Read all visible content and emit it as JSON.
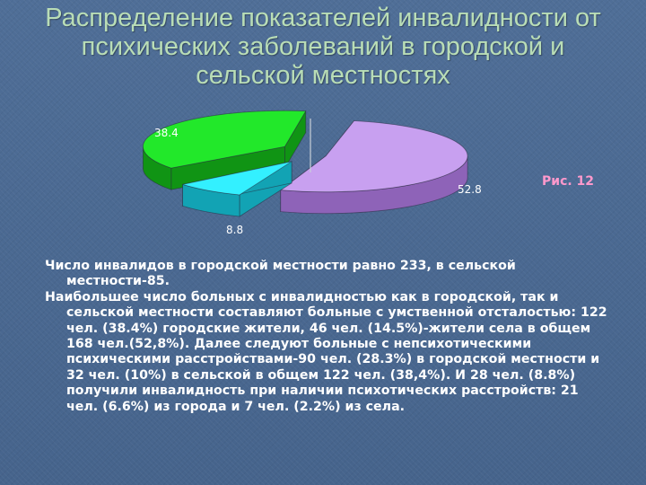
{
  "title_lines": [
    "Распределение показателей инвалидности от",
    "психических заболеваний в городской и",
    "сельской местностях"
  ],
  "figure_label": "Рис. 12",
  "chart_data": {
    "type": "pie",
    "values": [
      52.8,
      8.8,
      38.4
    ],
    "value_labels": [
      "52.8",
      "8.8",
      "38.4"
    ],
    "colors": [
      "#c8a0f0",
      "#33f0ff",
      "#22e82a"
    ],
    "side_colors": [
      "#8e63b8",
      "#12a3b4",
      "#109414"
    ],
    "style": "3d-exploded"
  },
  "paragraphs": [
    "Число инвалидов в городской местности равно 233, в сельской местности-85.",
    "Наибольшее число больных с инвалидностью как в городской, так и сельской местности составляют больные с умственной отсталостью: 122 чел. (38.4%) городские жители, 46 чел. (14.5%)-жители села в общем 168 чел.(52,8%). Далее следуют больные с непсихотическими психическими расстройствами-90 чел. (28.3%) в городской местности и 32 чел. (10%) в сельской в общем 122 чел. (38,4%). И 28 чел. (8.8%) получили инвалидность при наличии психотических расстройств: 21 чел. (6.6%) из города и 7 чел. (2.2%) из села."
  ]
}
